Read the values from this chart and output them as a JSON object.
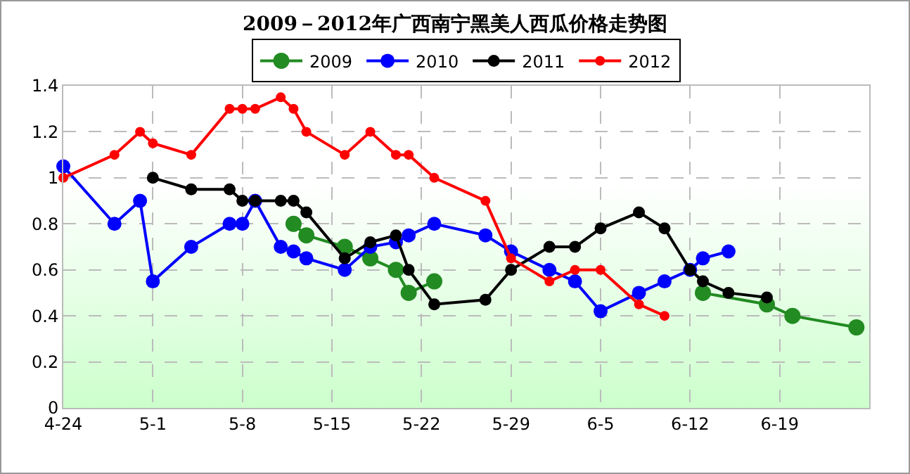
{
  "chart_data": {
    "type": "line",
    "title": "2009－2012年广西南宁黑美人西瓜价格走势图",
    "legend": "top",
    "grid": true,
    "marker": "circle",
    "line_style": "solid",
    "xlim": [
      "--04-24",
      "--06-26"
    ],
    "xticks": [
      {
        "value": "--04-24",
        "label": "4-24"
      },
      {
        "value": "--05-01",
        "label": "5-1"
      },
      {
        "value": "--05-08",
        "label": "5-8"
      },
      {
        "value": "--05-15",
        "label": "5-15"
      },
      {
        "value": "--05-22",
        "label": "5-22"
      },
      {
        "value": "--05-29",
        "label": "5-29"
      },
      {
        "value": "--06-05",
        "label": "6-5"
      },
      {
        "value": "--06-12",
        "label": "6-12"
      },
      {
        "value": "--06-19",
        "label": "6-19"
      }
    ],
    "ylim": [
      0,
      1.4
    ],
    "yticks": [
      0,
      0.2,
      0.4,
      0.6,
      0.8,
      1,
      1.2,
      1.4
    ],
    "series": [
      {
        "name": "2009",
        "color": "#228b22",
        "x": [
          "--05-12",
          "--05-13",
          "--05-16",
          "--05-18",
          "--05-20",
          "--05-21",
          "--05-23",
          "--06-01",
          "--06-13",
          "--06-18",
          "--06-20",
          "--06-25"
        ],
        "values": [
          0.8,
          0.75,
          0.7,
          0.65,
          0.6,
          0.5,
          0.55,
          null,
          0.5,
          0.45,
          0.4,
          0.35
        ]
      },
      {
        "name": "2010",
        "color": "#0000ff",
        "x": [
          "--04-24",
          "--04-28",
          "--04-30",
          "--05-01",
          "--05-04",
          "--05-07",
          "--05-08",
          "--05-09",
          "--05-11",
          "--05-12",
          "--05-13",
          "--05-16",
          "--05-18",
          "--05-20",
          "--05-21",
          "--05-23",
          "--05-27",
          "--05-29",
          "--06-01",
          "--06-03",
          "--06-05",
          "--06-08",
          "--06-10",
          "--06-12",
          "--06-13",
          "--06-15"
        ],
        "values": [
          1.05,
          0.8,
          0.9,
          0.55,
          0.7,
          0.8,
          0.8,
          0.9,
          0.7,
          0.68,
          0.65,
          0.6,
          0.7,
          0.72,
          0.75,
          0.8,
          0.75,
          0.68,
          0.6,
          0.55,
          0.42,
          0.5,
          0.55,
          0.6,
          0.65,
          0.68
        ]
      },
      {
        "name": "2011",
        "color": "#000000",
        "x": [
          "--05-01",
          "--05-04",
          "--05-07",
          "--05-08",
          "--05-09",
          "--05-11",
          "--05-12",
          "--05-13",
          "--05-16",
          "--05-18",
          "--05-20",
          "--05-21",
          "--05-23",
          "--05-27",
          "--05-29",
          "--06-01",
          "--06-03",
          "--06-05",
          "--06-08",
          "--06-10",
          "--06-12",
          "--06-13",
          "--06-15",
          "--06-18"
        ],
        "values": [
          1.0,
          0.95,
          0.95,
          0.9,
          0.9,
          0.9,
          0.9,
          0.85,
          0.65,
          0.72,
          0.75,
          0.6,
          0.45,
          0.47,
          0.6,
          0.7,
          0.7,
          0.78,
          0.85,
          0.78,
          0.6,
          0.55,
          0.5,
          0.48
        ]
      },
      {
        "name": "2012",
        "color": "#ff0000",
        "x": [
          "--04-24",
          "--04-28",
          "--04-30",
          "--05-01",
          "--05-04",
          "--05-07",
          "--05-08",
          "--05-09",
          "--05-11",
          "--05-12",
          "--05-13",
          "--05-16",
          "--05-18",
          "--05-20",
          "--05-21",
          "--05-23",
          "--05-27",
          "--05-29",
          "--06-01",
          "--06-03",
          "--06-05",
          "--06-08",
          "--06-10"
        ],
        "values": [
          1.0,
          1.1,
          1.2,
          1.15,
          1.1,
          1.3,
          1.3,
          1.3,
          1.35,
          1.3,
          1.2,
          1.1,
          1.2,
          1.1,
          1.1,
          1.0,
          0.9,
          0.65,
          0.55,
          0.6,
          0.6,
          0.45,
          0.4
        ]
      }
    ]
  }
}
